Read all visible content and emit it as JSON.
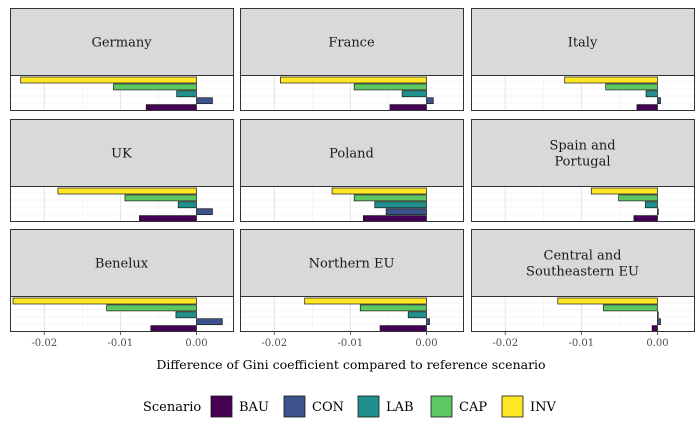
{
  "chart_data": {
    "type": "bar",
    "orientation": "horizontal",
    "xlabel": "Difference of Gini coefficient compared to reference scenario",
    "xlim": [
      -0.0245,
      0.0048
    ],
    "x_ticks": [
      -0.02,
      -0.01,
      0.0
    ],
    "x_tick_labels": [
      "-0.02",
      "-0.01",
      "0.00"
    ],
    "grid": true,
    "legend": {
      "title": "Scenario",
      "placement": "bottom",
      "entries": [
        "BAU",
        "CON",
        "LAB",
        "CAP",
        "INV"
      ]
    },
    "series_order_top_to_bottom": [
      "INV",
      "CAP",
      "LAB",
      "CON",
      "BAU"
    ],
    "colors": {
      "BAU": "#440154",
      "CON": "#3b528b",
      "LAB": "#21908c",
      "CAP": "#5dc863",
      "INV": "#fde725"
    },
    "panels": [
      {
        "title": [
          "Germany"
        ],
        "values": {
          "INV": -0.0231,
          "CAP": -0.0109,
          "LAB": -0.0026,
          "CON": 0.0021,
          "BAU": -0.0066
        }
      },
      {
        "title": [
          "France"
        ],
        "values": {
          "INV": -0.0192,
          "CAP": -0.0095,
          "LAB": -0.0032,
          "CON": 0.0009,
          "BAU": -0.0048
        }
      },
      {
        "title": [
          "Italy"
        ],
        "values": {
          "INV": -0.0122,
          "CAP": -0.0068,
          "LAB": -0.0015,
          "CON": 0.0004,
          "BAU": -0.0027
        }
      },
      {
        "title": [
          "UK"
        ],
        "values": {
          "INV": -0.0182,
          "CAP": -0.0094,
          "LAB": -0.0024,
          "CON": 0.0021,
          "BAU": -0.0075
        }
      },
      {
        "title": [
          "Poland"
        ],
        "values": {
          "INV": -0.0124,
          "CAP": -0.0095,
          "LAB": -0.0068,
          "CON": -0.0053,
          "BAU": -0.0083
        }
      },
      {
        "title": [
          "Spain and",
          "Portugal"
        ],
        "values": {
          "INV": -0.0087,
          "CAP": -0.0051,
          "LAB": -0.0016,
          "CON": 0.0001,
          "BAU": -0.0031
        }
      },
      {
        "title": [
          "Benelux"
        ],
        "values": {
          "INV": -0.0241,
          "CAP": -0.0118,
          "LAB": -0.0027,
          "CON": 0.0034,
          "BAU": -0.006
        }
      },
      {
        "title": [
          "Northern EU"
        ],
        "values": {
          "INV": -0.016,
          "CAP": -0.0087,
          "LAB": -0.0024,
          "CON": 0.0004,
          "BAU": -0.0061
        }
      },
      {
        "title": [
          "Central and",
          "Southeastern EU"
        ],
        "values": {
          "INV": -0.0131,
          "CAP": -0.0071,
          "LAB": 0.0001,
          "CON": 0.0004,
          "BAU": -0.0007
        }
      }
    ]
  }
}
